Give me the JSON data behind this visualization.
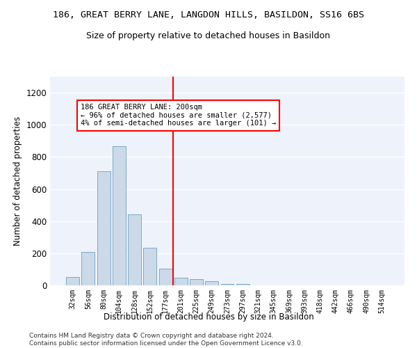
{
  "title": "186, GREAT BERRY LANE, LANGDON HILLS, BASILDON, SS16 6BS",
  "subtitle": "Size of property relative to detached houses in Basildon",
  "xlabel": "Distribution of detached houses by size in Basildon",
  "ylabel": "Number of detached properties",
  "bar_color": "#ccd9e8",
  "bar_edgecolor": "#7aaac8",
  "background_color": "#eef2fb",
  "grid_color": "#ffffff",
  "categories": [
    "32sqm",
    "56sqm",
    "80sqm",
    "104sqm",
    "128sqm",
    "152sqm",
    "177sqm",
    "201sqm",
    "225sqm",
    "249sqm",
    "273sqm",
    "297sqm",
    "321sqm",
    "345sqm",
    "369sqm",
    "393sqm",
    "418sqm",
    "442sqm",
    "466sqm",
    "490sqm",
    "514sqm"
  ],
  "values": [
    50,
    210,
    710,
    865,
    440,
    235,
    105,
    48,
    40,
    25,
    10,
    10,
    0,
    0,
    0,
    0,
    0,
    0,
    0,
    0,
    0
  ],
  "ylim": [
    0,
    1300
  ],
  "yticks": [
    0,
    200,
    400,
    600,
    800,
    1000,
    1200
  ],
  "property_bar_index": 7,
  "annotation_title": "186 GREAT BERRY LANE: 200sqm",
  "annotation_line1": "← 96% of detached houses are smaller (2,577)",
  "annotation_line2": "4% of semi-detached houses are larger (101) →",
  "footer_line1": "Contains HM Land Registry data © Crown copyright and database right 2024.",
  "footer_line2": "Contains public sector information licensed under the Open Government Licence v3.0."
}
